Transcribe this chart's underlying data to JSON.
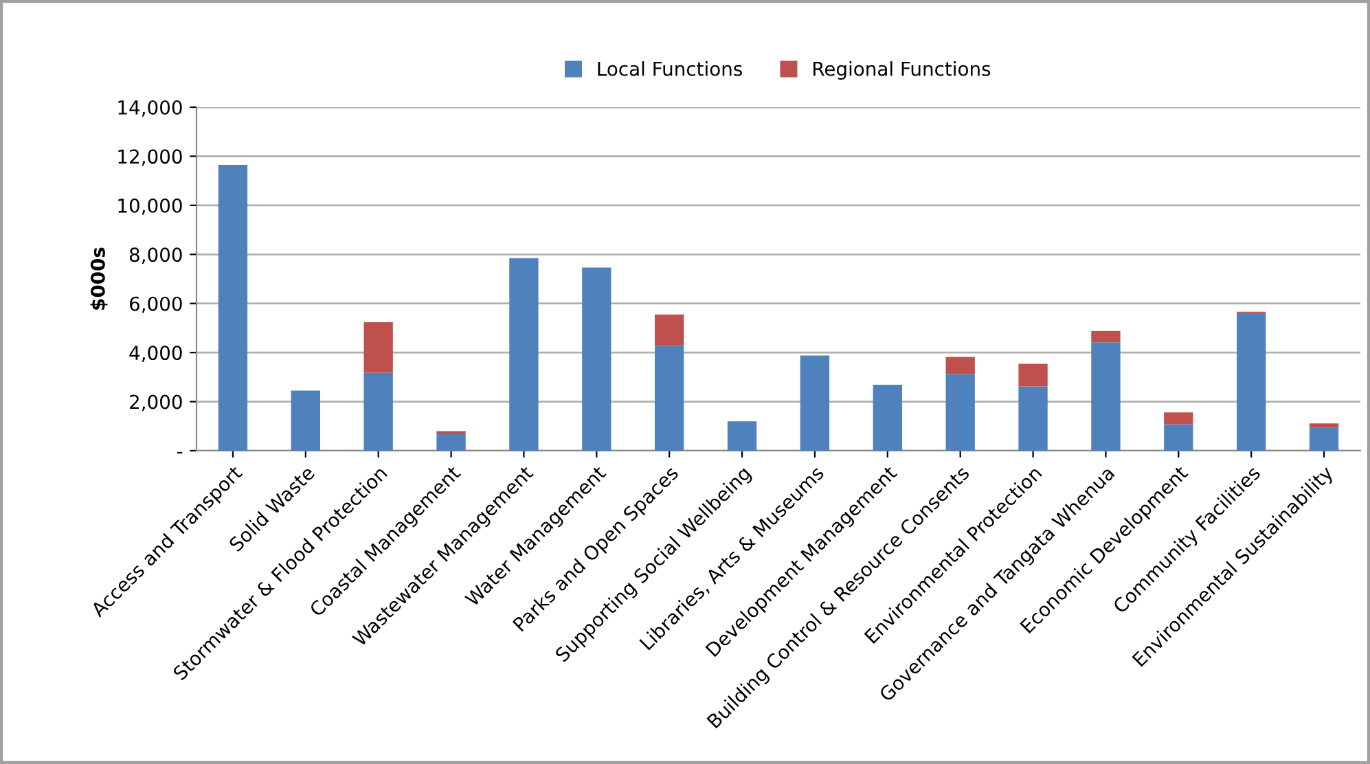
{
  "chart_data": {
    "type": "bar",
    "stacked": true,
    "ylabel": "$000s",
    "categories": [
      "Access and Transport",
      "Solid Waste",
      "Stormwater & Flood Protection",
      "Coastal Management",
      "Wastewater Management",
      "Water Management",
      "Parks and Open Spaces",
      "Supporting Social Wellbeing",
      "Libraries, Arts & Museums",
      "Development Management",
      "Building Control & Resource Consents",
      "Environmental Protection",
      "Governance and Tangata Whenua",
      "Economic Development",
      "Community Facilities",
      "Environmental Sustainability"
    ],
    "series": [
      {
        "name": "Local Functions",
        "color": "#4f81bd",
        "values": [
          11650,
          2450,
          3175,
          670,
          7850,
          7465,
          4270,
          1200,
          3880,
          2690,
          3120,
          2620,
          4420,
          1075,
          5605,
          930
        ]
      },
      {
        "name": "Regional Functions",
        "color": "#c0504d",
        "values": [
          0,
          0,
          2060,
          130,
          0,
          0,
          1280,
          0,
          0,
          0,
          705,
          925,
          460,
          485,
          60,
          185
        ]
      }
    ],
    "ylim": [
      0,
      14000
    ],
    "yticks": [
      {
        "value": 0,
        "label": "-"
      },
      {
        "value": 2000,
        "label": "2,000"
      },
      {
        "value": 4000,
        "label": "4,000"
      },
      {
        "value": 6000,
        "label": "6,000"
      },
      {
        "value": 8000,
        "label": "8,000"
      },
      {
        "value": 10000,
        "label": "10,000"
      },
      {
        "value": 12000,
        "label": "12,000"
      },
      {
        "value": 14000,
        "label": "14,000"
      }
    ],
    "grid": "y",
    "legend": "top"
  }
}
